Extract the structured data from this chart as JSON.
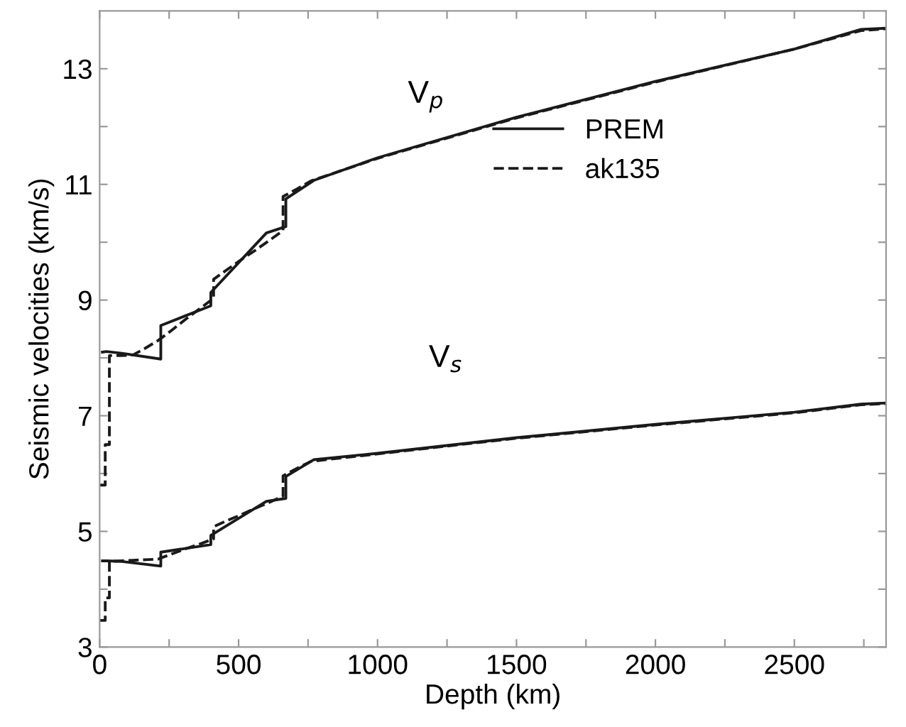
{
  "chart_data": {
    "type": "line",
    "xlabel": "Depth (km)",
    "ylabel": "Seismic velocities (km/s)",
    "xlim": [
      0,
      2830
    ],
    "ylim": [
      3,
      14
    ],
    "xticks": [
      0,
      {
        "value": 250,
        "label": null
      },
      500,
      {
        "value": 750,
        "label": null
      },
      1000,
      {
        "value": 1250,
        "label": null
      },
      1500,
      {
        "value": 1750,
        "label": null
      },
      2000,
      {
        "value": 2250,
        "label": null
      },
      2500,
      {
        "value": 2750,
        "label": null
      }
    ],
    "yticks": [
      3,
      {
        "value": 4,
        "label": null
      },
      5,
      {
        "value": 6,
        "label": null
      },
      7,
      {
        "value": 8,
        "label": null
      },
      9,
      {
        "value": 10,
        "label": null
      },
      11,
      {
        "value": 12,
        "label": null
      },
      13
    ],
    "grid": false,
    "legend": "top right",
    "marker": "none",
    "annotations": [
      "V$_{p}$",
      "V$_{s}$"
    ],
    "series": [
      {
        "name": "PREM",
        "color": "#1a1a1a",
        "line_style": "solid",
        "x": [
          10,
          24,
          80,
          220,
          220,
          400,
          400,
          600,
          670,
          670,
          771,
          1000,
          1500,
          2000,
          2500,
          2740,
          2828
        ],
        "values": [
          8.1,
          8.11,
          8.08,
          7.98,
          8.56,
          8.9,
          9.13,
          10.16,
          10.27,
          10.75,
          11.07,
          11.46,
          12.16,
          12.78,
          13.34,
          13.68,
          13.7
        ]
      },
      {
        "color": "#1a1a1a",
        "line_style": "solid",
        "x": [
          10,
          24,
          80,
          220,
          220,
          400,
          400,
          600,
          670,
          670,
          771,
          1000,
          1500,
          2000,
          2500,
          2740,
          2828
        ],
        "values": [
          4.49,
          4.49,
          4.48,
          4.4,
          4.64,
          4.77,
          4.93,
          5.52,
          5.57,
          5.95,
          6.24,
          6.35,
          6.62,
          6.85,
          7.06,
          7.2,
          7.22
        ]
      },
      {
        "name": "ak135",
        "color": "#1a1a1a",
        "line_style": "dashed",
        "x": [
          0,
          20,
          20,
          35,
          35,
          77.5,
          120,
          165,
          210,
          260,
          310,
          360,
          410,
          410,
          460,
          510,
          560,
          610,
          660,
          660,
          710,
          760,
          1000,
          1500,
          2000,
          2500,
          2740,
          2828
        ],
        "values": [
          5.8,
          5.8,
          6.5,
          6.5,
          8.04,
          8.04,
          8.05,
          8.17,
          8.3,
          8.48,
          8.67,
          8.85,
          9.03,
          9.36,
          9.53,
          9.7,
          9.86,
          10.03,
          10.2,
          10.79,
          10.92,
          11.06,
          11.45,
          12.15,
          12.77,
          13.34,
          13.66,
          13.69
        ]
      },
      {
        "color": "#1a1a1a",
        "line_style": "dashed",
        "x": [
          0,
          20,
          20,
          35,
          35,
          77.5,
          120,
          165,
          210,
          260,
          310,
          360,
          410,
          410,
          460,
          510,
          560,
          610,
          660,
          660,
          710,
          760,
          1000,
          1500,
          2000,
          2500,
          2740,
          2828
        ],
        "values": [
          3.46,
          3.46,
          3.85,
          3.85,
          4.48,
          4.49,
          4.5,
          4.51,
          4.52,
          4.61,
          4.7,
          4.78,
          4.87,
          5.08,
          5.19,
          5.29,
          5.4,
          5.5,
          5.61,
          5.96,
          6.09,
          6.21,
          6.34,
          6.61,
          6.84,
          7.05,
          7.19,
          7.21
        ]
      }
    ]
  }
}
